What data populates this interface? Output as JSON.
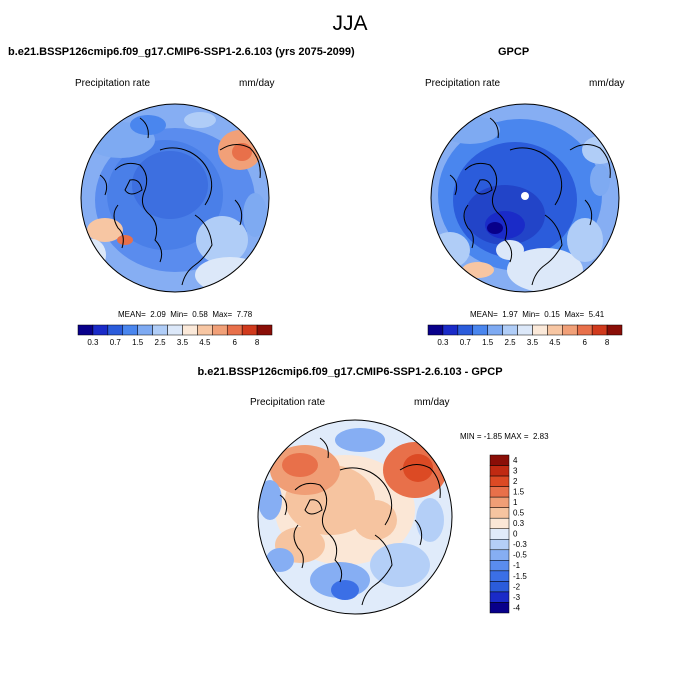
{
  "title": "JJA",
  "colors": {
    "background": "#ffffff",
    "map_outline": "#000000",
    "coast": "#000000"
  },
  "panel_model": {
    "title": "b.e21.BSSP126cmip6.f09_g17.CMIP6-SSP1-2.6.103 (yrs 2075-2099)",
    "variable": "Precipitation rate",
    "units": "mm/day",
    "stats": {
      "mean_label": "MEAN=",
      "mean": "2.09",
      "min_label": "Min=",
      "min": "0.58",
      "max_label": "Max=",
      "max": "7.78"
    }
  },
  "panel_obs": {
    "title": "GPCP",
    "variable": "Precipitation rate",
    "units": "mm/day",
    "stats": {
      "mean_label": "MEAN=",
      "mean": "1.97",
      "min_label": "Min=",
      "min": "0.15",
      "max_label": "Max=",
      "max": "5.41"
    }
  },
  "panel_diff": {
    "title": "b.e21.BSSP126cmip6.f09_g17.CMIP6-SSP1-2.6.103 - GPCP",
    "variable": "Precipitation rate",
    "units": "mm/day",
    "minmax": {
      "min_label": "MIN =",
      "min": "-1.85",
      "max_label": "MAX =",
      "max": "2.83"
    }
  },
  "colorbar_abs": {
    "colors": [
      "#08008a",
      "#1a2bc8",
      "#2b5cdb",
      "#4a86ee",
      "#7eaaf2",
      "#b0cdf7",
      "#dce8f9",
      "#fbe9d9",
      "#f7c6a3",
      "#f1a078",
      "#e8704a",
      "#d03a1d",
      "#8a0e07"
    ],
    "ticks": [
      "0.3",
      "0.7",
      "1.5",
      "2.5",
      "3.5",
      "4.5",
      "6",
      "8"
    ]
  },
  "colorbar_diff": {
    "colors": [
      "#08008a",
      "#1a2bc8",
      "#2b5cdb",
      "#3b6fe6",
      "#5a8cee",
      "#86aef3",
      "#b4cff7",
      "#e0ebfa",
      "#fbe7d6",
      "#f6c4a0",
      "#f09e76",
      "#e8704a",
      "#dc4a24",
      "#c02a12",
      "#8a0e07"
    ],
    "labels": [
      "4",
      "3",
      "2",
      "1.5",
      "1",
      "0.5",
      "0.3",
      "0",
      "-0.3",
      "-0.5",
      "-1",
      "-1.5",
      "-2",
      "-3",
      "-4"
    ]
  }
}
